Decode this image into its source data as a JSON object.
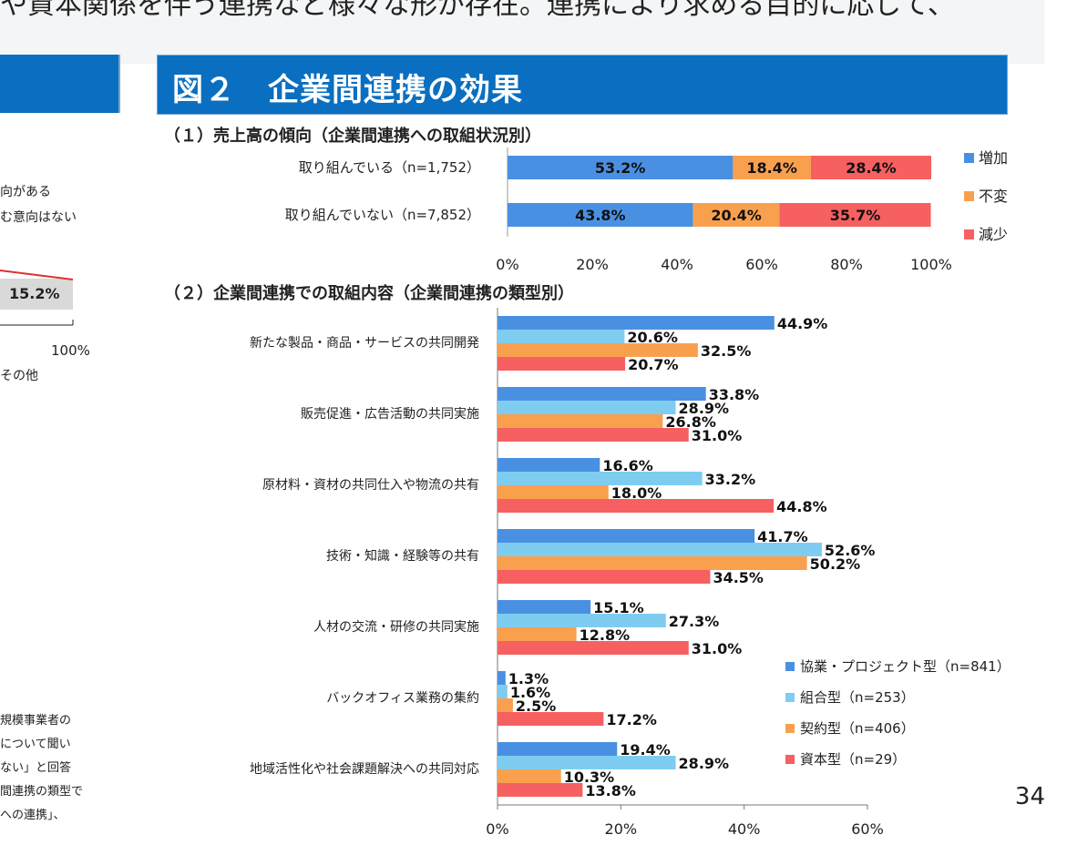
{
  "top_text": "や資本関係を伴う連携など様々な形が存在。連携により求める目的に応じて、",
  "title": "図２　企業間連携の効果",
  "left_fragments": {
    "line1": "向がある",
    "line2": "む意向はない",
    "value": "15.2%",
    "axis_end": "100%",
    "legend_other": "その他",
    "note1": "規模事業者の",
    "note2": "について聞い",
    "note3": "ない」と回答",
    "note4": "間連携の類型で",
    "note5": "への連携」、"
  },
  "page_number": "34",
  "colors": {
    "blue": "#4a90e2",
    "light_blue": "#7ecdf0",
    "orange": "#f9a04e",
    "red": "#f66060",
    "banner": "#0a6fc0"
  },
  "chart_data": [
    {
      "type": "bar",
      "orientation": "horizontal",
      "stacked": true,
      "title": "（１）売上高の傾向（企業間連携への取組状況別）",
      "categories": [
        "取り組んでいる（n=1,752）",
        "取り組んでいない（n=7,852）"
      ],
      "series": [
        {
          "name": "増加",
          "values": [
            53.2,
            43.8
          ],
          "labels": [
            "53.2%",
            "43.8%"
          ],
          "color": "#4a90e2"
        },
        {
          "name": "不変",
          "values": [
            18.4,
            20.4
          ],
          "labels": [
            "18.4%",
            "20.4%"
          ],
          "color": "#f9a04e"
        },
        {
          "name": "減少",
          "values": [
            28.4,
            35.7
          ],
          "labels": [
            "28.4%",
            "35.7%"
          ],
          "color": "#f66060"
        }
      ],
      "xlim": [
        0,
        100
      ],
      "xticks": [
        "0%",
        "20%",
        "40%",
        "60%",
        "80%",
        "100%"
      ],
      "legend_position": "right"
    },
    {
      "type": "bar",
      "orientation": "horizontal",
      "stacked": false,
      "title": "（２）企業間連携での取組内容（企業間連携の類型別）",
      "categories": [
        "新たな製品・商品・サービスの共同開発",
        "販売促進・広告活動の共同実施",
        "原材料・資材の共同仕入や物流の共有",
        "技術・知識・経験等の共有",
        "人材の交流・研修の共同実施",
        "バックオフィス業務の集約",
        "地域活性化や社会課題解決への共同対応"
      ],
      "series": [
        {
          "name": "協業・プロジェクト型（n=841）",
          "values": [
            44.9,
            33.8,
            16.6,
            41.7,
            15.1,
            1.3,
            19.4
          ],
          "labels": [
            "44.9%",
            "33.8%",
            "16.6%",
            "41.7%",
            "15.1%",
            "1.3%",
            "19.4%"
          ],
          "color": "#4a90e2"
        },
        {
          "name": "組合型（n=253）",
          "values": [
            20.6,
            28.9,
            33.2,
            52.6,
            27.3,
            1.6,
            28.9
          ],
          "labels": [
            "20.6%",
            "28.9%",
            "33.2%",
            "52.6%",
            "27.3%",
            "1.6%",
            "28.9%"
          ],
          "color": "#7ecdf0"
        },
        {
          "name": "契約型（n=406）",
          "values": [
            32.5,
            26.8,
            18.0,
            50.2,
            12.8,
            2.5,
            10.3
          ],
          "labels": [
            "32.5%",
            "26.8%",
            "18.0%",
            "50.2%",
            "12.8%",
            "2.5%",
            "10.3%"
          ],
          "color": "#f9a04e"
        },
        {
          "name": "資本型（n=29）",
          "values": [
            20.7,
            31.0,
            44.8,
            34.5,
            31.0,
            17.2,
            13.8
          ],
          "labels": [
            "20.7%",
            "31.0%",
            "44.8%",
            "34.5%",
            "31.0%",
            "17.2%",
            "13.8%"
          ],
          "color": "#f66060"
        }
      ],
      "xlim": [
        0,
        60
      ],
      "xticks": [
        "0%",
        "20%",
        "40%",
        "60%"
      ],
      "legend_position": "bottom-right"
    }
  ]
}
